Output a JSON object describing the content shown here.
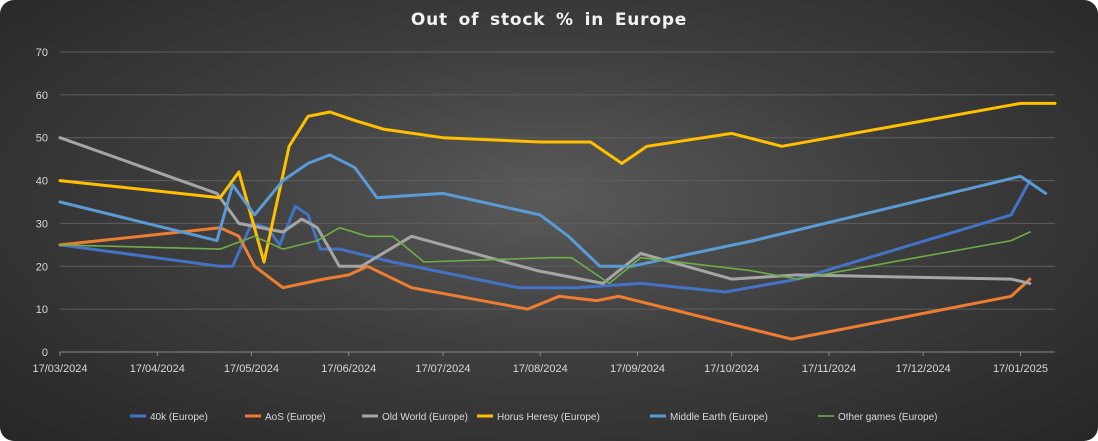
{
  "chart_data": {
    "type": "line",
    "title": "Out of stock % in Europe",
    "xlabel": "",
    "ylabel": "",
    "ylim": [
      0,
      70
    ],
    "yticks": [
      0,
      10,
      20,
      30,
      40,
      50,
      60,
      70
    ],
    "xlim": [
      "2024-03-17",
      "2025-01-28"
    ],
    "xticks": [
      {
        "date": "2024-03-17",
        "label": "17/03/2024"
      },
      {
        "date": "2024-04-17",
        "label": "17/04/2024"
      },
      {
        "date": "2024-05-17",
        "label": "17/05/2024"
      },
      {
        "date": "2024-06-17",
        "label": "17/06/2024"
      },
      {
        "date": "2024-07-17",
        "label": "17/07/2024"
      },
      {
        "date": "2024-08-17",
        "label": "17/08/2024"
      },
      {
        "date": "2024-09-17",
        "label": "17/09/2024"
      },
      {
        "date": "2024-10-17",
        "label": "17/10/2024"
      },
      {
        "date": "2024-11-17",
        "label": "17/11/2024"
      },
      {
        "date": "2024-12-17",
        "label": "17/12/2024"
      },
      {
        "date": "2025-01-17",
        "label": "17/01/2025"
      }
    ],
    "grid": true,
    "legend_position": "bottom",
    "series": [
      {
        "name": "40k (Europe)",
        "color": "#4472c4",
        "width": 3,
        "points": [
          [
            "2024-03-17",
            25
          ],
          [
            "2024-05-07",
            20
          ],
          [
            "2024-05-11",
            20
          ],
          [
            "2024-05-17",
            30
          ],
          [
            "2024-05-22",
            29
          ],
          [
            "2024-05-26",
            25
          ],
          [
            "2024-05-31",
            34
          ],
          [
            "2024-06-04",
            32
          ],
          [
            "2024-06-08",
            24
          ],
          [
            "2024-06-14",
            24
          ],
          [
            "2024-07-01",
            21
          ],
          [
            "2024-08-10",
            15
          ],
          [
            "2024-08-28",
            15
          ],
          [
            "2024-09-18",
            16
          ],
          [
            "2024-10-15",
            14
          ],
          [
            "2024-11-07",
            17
          ],
          [
            "2025-01-14",
            32
          ],
          [
            "2025-01-20",
            40
          ]
        ]
      },
      {
        "name": "AoS (Europe)",
        "color": "#ed7d31",
        "width": 3,
        "points": [
          [
            "2024-03-17",
            25
          ],
          [
            "2024-05-07",
            29
          ],
          [
            "2024-05-13",
            27
          ],
          [
            "2024-05-18",
            20
          ],
          [
            "2024-05-27",
            15
          ],
          [
            "2024-06-09",
            17
          ],
          [
            "2024-06-17",
            18
          ],
          [
            "2024-06-23",
            20
          ],
          [
            "2024-07-07",
            15
          ],
          [
            "2024-08-13",
            10
          ],
          [
            "2024-08-23",
            13
          ],
          [
            "2024-09-04",
            12
          ],
          [
            "2024-09-11",
            13
          ],
          [
            "2024-11-05",
            3
          ],
          [
            "2025-01-14",
            13
          ],
          [
            "2025-01-20",
            17
          ]
        ]
      },
      {
        "name": "Old World (Europe)",
        "color": "#a5a5a5",
        "width": 3,
        "points": [
          [
            "2024-03-17",
            50
          ],
          [
            "2024-05-06",
            37
          ],
          [
            "2024-05-13",
            30
          ],
          [
            "2024-05-27",
            28
          ],
          [
            "2024-06-02",
            31
          ],
          [
            "2024-06-07",
            29
          ],
          [
            "2024-06-14",
            20
          ],
          [
            "2024-06-21",
            20
          ],
          [
            "2024-07-07",
            27
          ],
          [
            "2024-08-16",
            19
          ],
          [
            "2024-09-06",
            16
          ],
          [
            "2024-09-18",
            23
          ],
          [
            "2024-10-17",
            17
          ],
          [
            "2024-11-07",
            18
          ],
          [
            "2025-01-14",
            17
          ],
          [
            "2025-01-20",
            16
          ]
        ]
      },
      {
        "name": "Horus Heresy (Europe)",
        "color": "#ffc000",
        "width": 3,
        "points": [
          [
            "2024-03-17",
            40
          ],
          [
            "2024-05-07",
            36
          ],
          [
            "2024-05-13",
            42
          ],
          [
            "2024-05-21",
            21
          ],
          [
            "2024-05-29",
            48
          ],
          [
            "2024-06-04",
            55
          ],
          [
            "2024-06-11",
            56
          ],
          [
            "2024-06-19",
            54
          ],
          [
            "2024-06-28",
            52
          ],
          [
            "2024-07-17",
            50
          ],
          [
            "2024-08-17",
            49
          ],
          [
            "2024-09-02",
            49
          ],
          [
            "2024-09-12",
            44
          ],
          [
            "2024-09-20",
            48
          ],
          [
            "2024-10-17",
            51
          ],
          [
            "2024-11-02",
            48
          ],
          [
            "2025-01-17",
            58
          ],
          [
            "2025-01-28",
            58
          ]
        ]
      },
      {
        "name": "Middle Earth (Europe)",
        "color": "#5b9bd5",
        "width": 3,
        "points": [
          [
            "2024-03-17",
            35
          ],
          [
            "2024-05-06",
            26
          ],
          [
            "2024-05-11",
            39
          ],
          [
            "2024-05-18",
            32
          ],
          [
            "2024-05-27",
            40
          ],
          [
            "2024-06-04",
            44
          ],
          [
            "2024-06-11",
            46
          ],
          [
            "2024-06-19",
            43
          ],
          [
            "2024-06-26",
            36
          ],
          [
            "2024-07-17",
            37
          ],
          [
            "2024-08-17",
            32
          ],
          [
            "2024-08-26",
            27
          ],
          [
            "2024-09-05",
            20
          ],
          [
            "2024-09-15",
            20
          ],
          [
            "2024-10-24",
            26
          ],
          [
            "2025-01-17",
            41
          ],
          [
            "2025-01-25",
            37
          ]
        ]
      },
      {
        "name": "Other games (Europe)",
        "color": "#70ad47",
        "width": 1.6,
        "points": [
          [
            "2024-03-17",
            25
          ],
          [
            "2024-05-07",
            24
          ],
          [
            "2024-05-18",
            27
          ],
          [
            "2024-05-27",
            24
          ],
          [
            "2024-06-07",
            26
          ],
          [
            "2024-06-14",
            29
          ],
          [
            "2024-06-23",
            27
          ],
          [
            "2024-07-01",
            27
          ],
          [
            "2024-07-11",
            21
          ],
          [
            "2024-08-20",
            22
          ],
          [
            "2024-08-27",
            22
          ],
          [
            "2024-09-08",
            16
          ],
          [
            "2024-09-18",
            22
          ],
          [
            "2024-10-23",
            19
          ],
          [
            "2024-11-07",
            17
          ],
          [
            "2025-01-14",
            26
          ],
          [
            "2025-01-20",
            28
          ]
        ]
      }
    ]
  }
}
